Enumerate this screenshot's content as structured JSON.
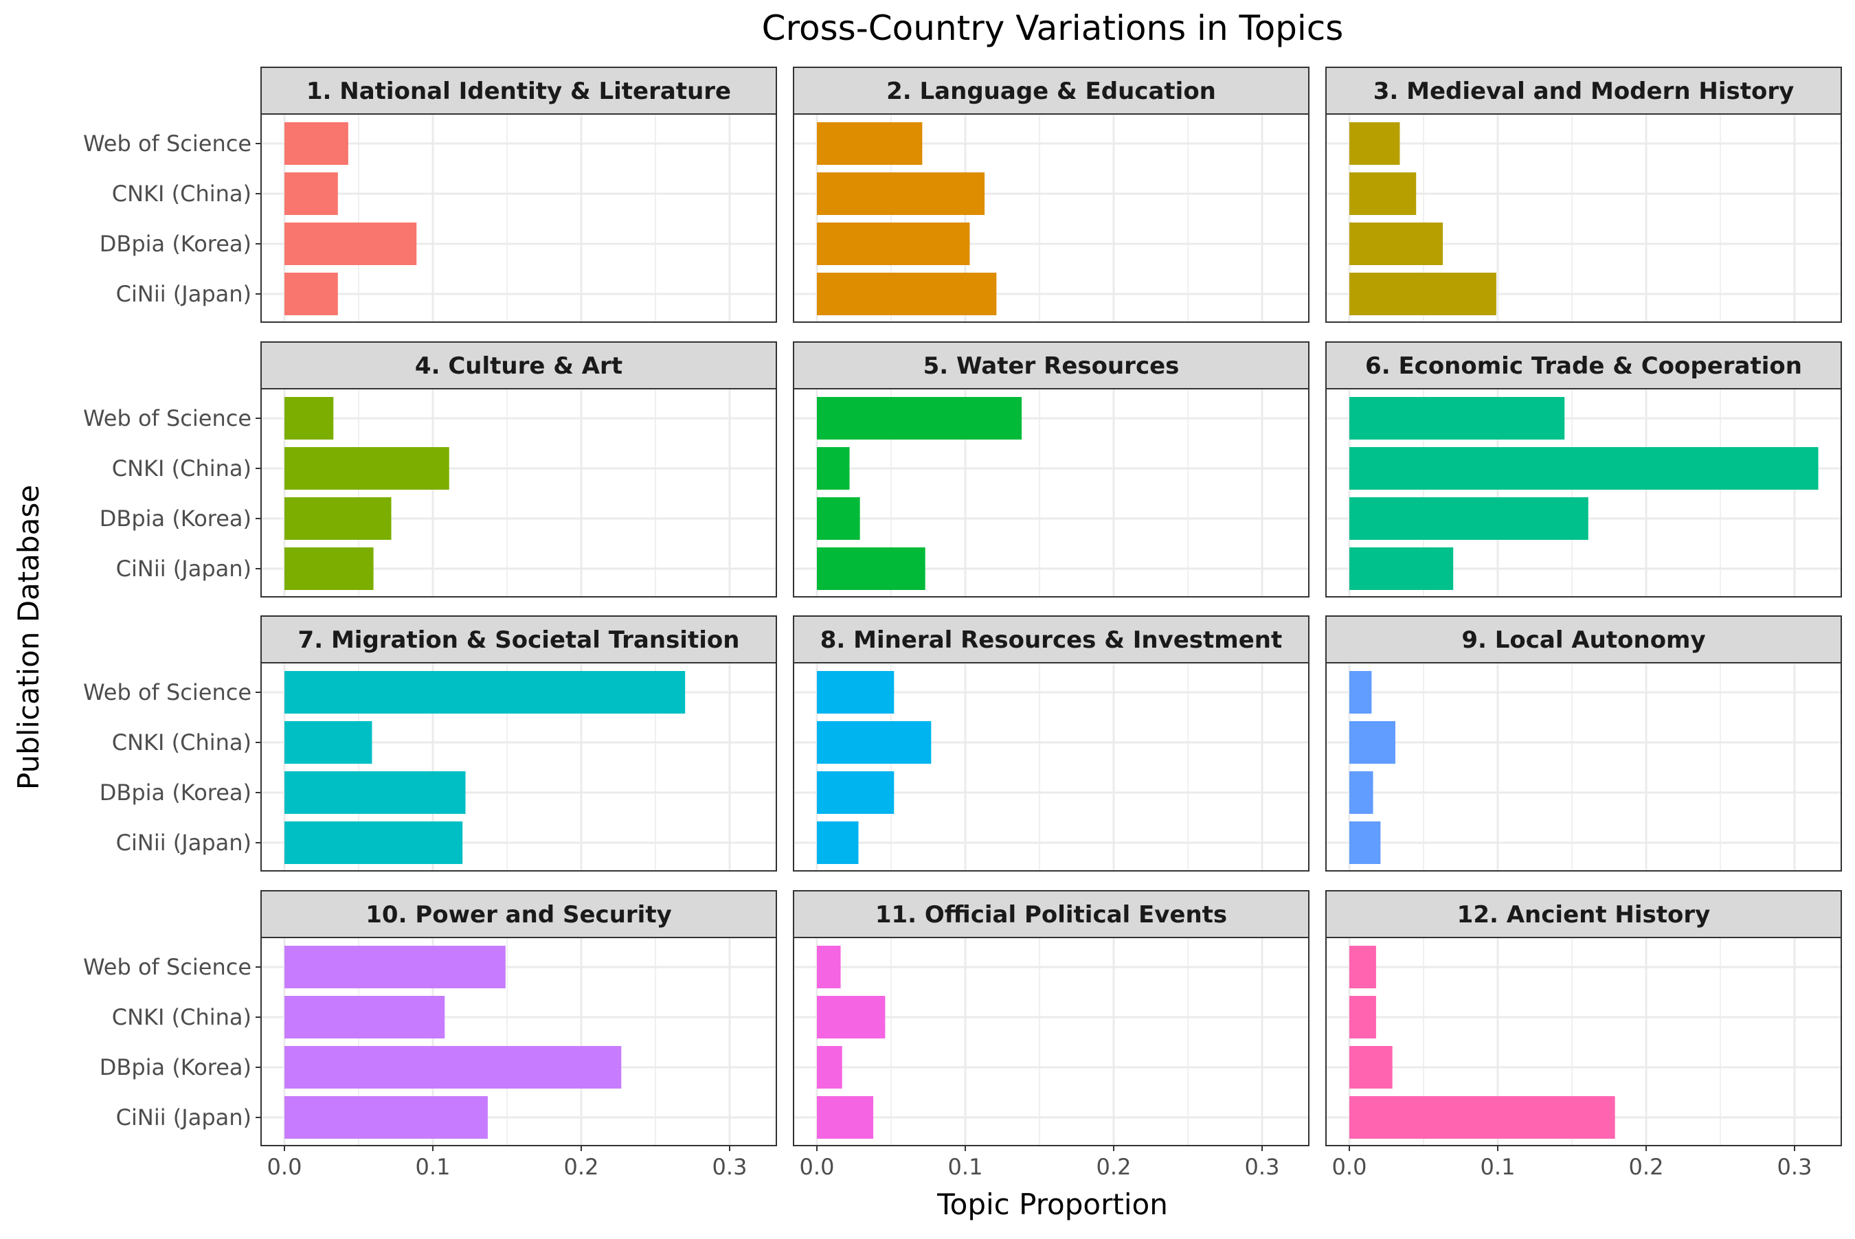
{
  "chart_data": {
    "type": "bar",
    "title": "Cross-Country Variations in Topics",
    "xlabel": "Topic Proportion",
    "ylabel": "Publication Database",
    "categories": [
      "Web of Science",
      "CNKI (China)",
      "DBpia (Korea)",
      "CiNii (Japan)"
    ],
    "xlim": [
      0,
      0.3
    ],
    "xticks": [
      "0.0",
      "0.1",
      "0.2",
      "0.3"
    ],
    "orientation": "horizontal",
    "grid": true,
    "facets": [
      {
        "title": "1. National Identity & Literature",
        "color": "#F8766D",
        "values": [
          0.043,
          0.036,
          0.089,
          0.036
        ]
      },
      {
        "title": "2. Language & Education",
        "color": "#DE8C00",
        "values": [
          0.071,
          0.113,
          0.103,
          0.121
        ]
      },
      {
        "title": "3. Medieval and Modern History",
        "color": "#B79F00",
        "values": [
          0.034,
          0.045,
          0.063,
          0.099
        ]
      },
      {
        "title": "4. Culture & Art",
        "color": "#7CAE00",
        "values": [
          0.033,
          0.111,
          0.072,
          0.06
        ]
      },
      {
        "title": "5. Water Resources",
        "color": "#00BA38",
        "values": [
          0.138,
          0.022,
          0.029,
          0.073
        ]
      },
      {
        "title": "6. Economic Trade & Cooperation",
        "color": "#00C08B",
        "values": [
          0.145,
          0.316,
          0.161,
          0.07
        ]
      },
      {
        "title": "7. Migration & Societal Transition",
        "color": "#00BFC4",
        "values": [
          0.27,
          0.059,
          0.122,
          0.12
        ]
      },
      {
        "title": "8. Mineral Resources & Investment",
        "color": "#00B4F0",
        "values": [
          0.052,
          0.077,
          0.052,
          0.028
        ]
      },
      {
        "title": "9. Local Autonomy",
        "color": "#619CFF",
        "values": [
          0.015,
          0.031,
          0.016,
          0.021
        ]
      },
      {
        "title": "10. Power and Security",
        "color": "#C77CFF",
        "values": [
          0.149,
          0.108,
          0.227,
          0.137
        ]
      },
      {
        "title": "11. Official Political Events",
        "color": "#F564E3",
        "values": [
          0.016,
          0.046,
          0.017,
          0.038
        ]
      },
      {
        "title": "12. Ancient History",
        "color": "#FF64B0",
        "values": [
          0.018,
          0.018,
          0.029,
          0.179
        ]
      }
    ]
  }
}
